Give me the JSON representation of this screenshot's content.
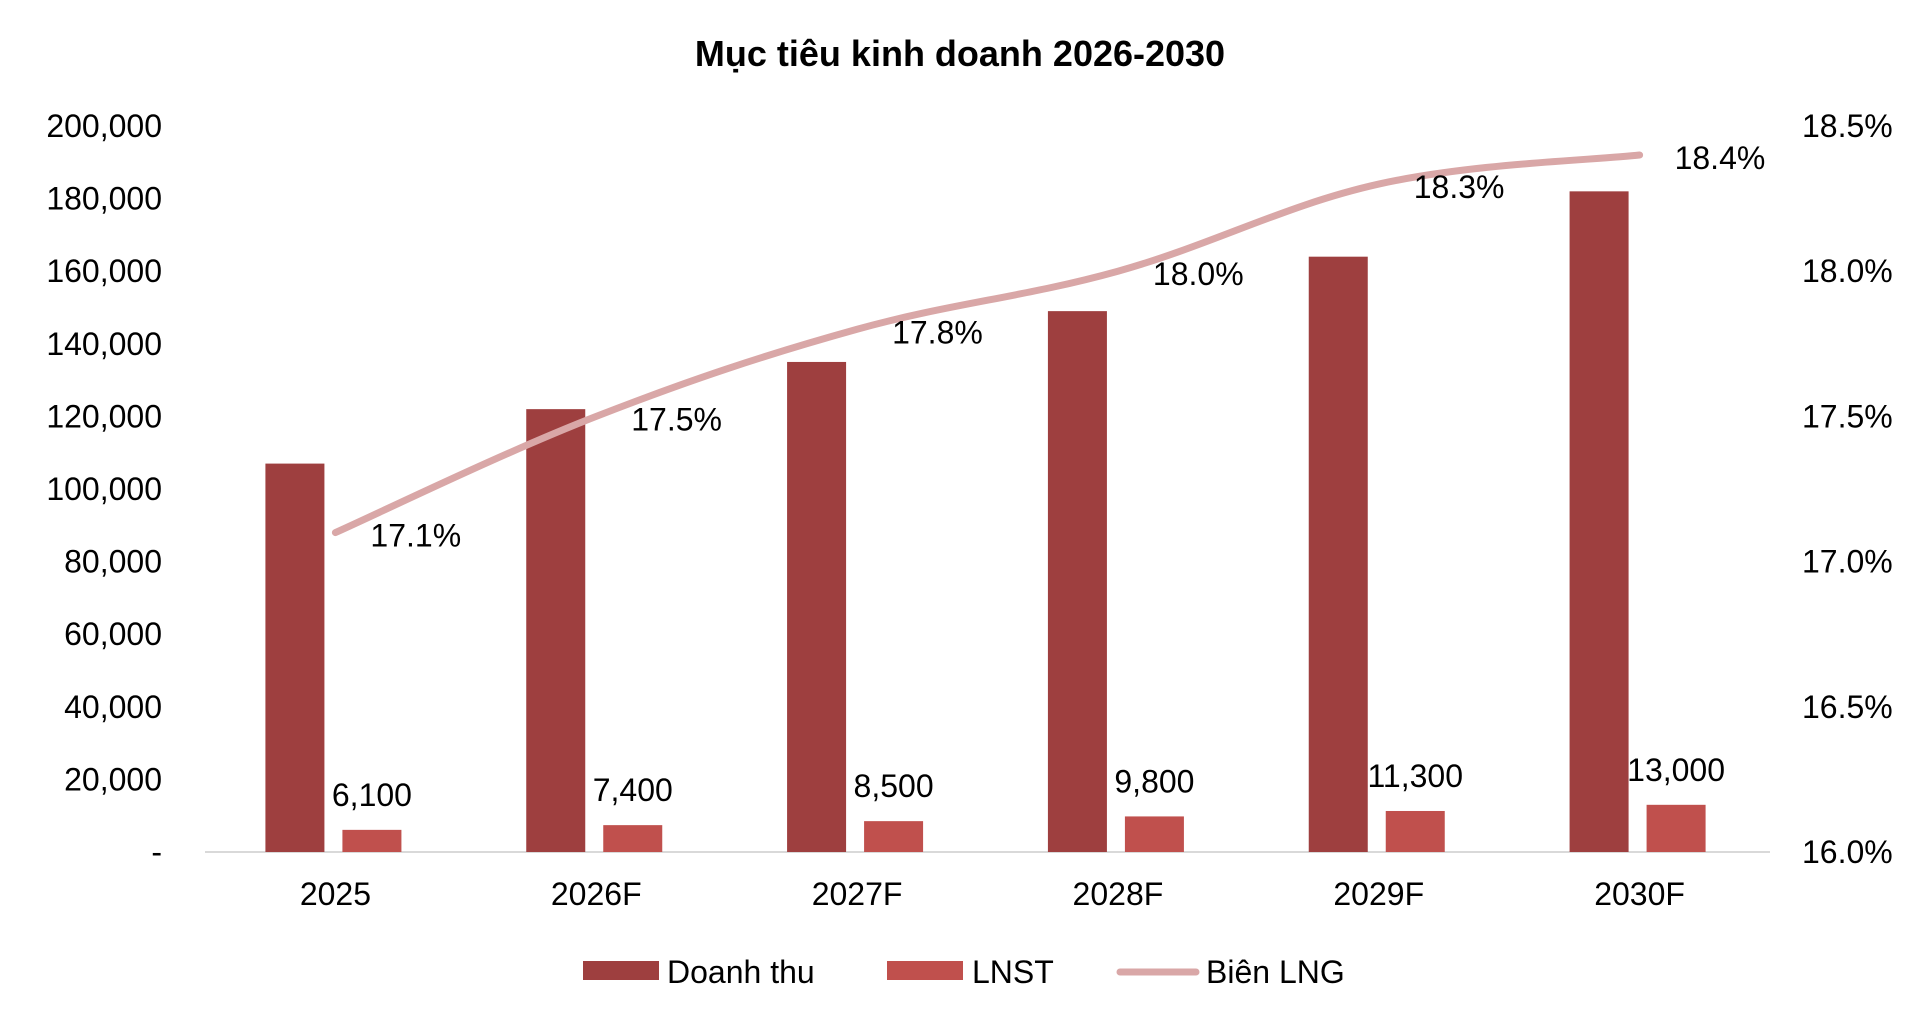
{
  "chart_data": {
    "type": "bar",
    "title": "Mục tiêu kinh doanh 2026-2030",
    "categories": [
      "2025",
      "2026F",
      "2027F",
      "2028F",
      "2029F",
      "2030F"
    ],
    "series": [
      {
        "name": "Doanh thu",
        "type": "bar",
        "axis": "left",
        "color": "#9E3F3F",
        "values": [
          107000,
          122000,
          135000,
          149000,
          164000,
          182000
        ],
        "labels_shown": false
      },
      {
        "name": "LNST",
        "type": "bar",
        "axis": "left",
        "color": "#C0504D",
        "values": [
          6100,
          7400,
          8500,
          9800,
          11300,
          13000
        ],
        "data_labels": [
          "6,100",
          "7,400",
          "8,500",
          "9,800",
          "11,300",
          "13,000"
        ]
      },
      {
        "name": "Biên LNG",
        "type": "line",
        "axis": "right",
        "color": "#D9A7A7",
        "values": [
          17.1,
          17.5,
          17.8,
          18.0,
          18.3,
          18.4
        ],
        "data_labels": [
          "17.1%",
          "17.5%",
          "17.8%",
          "18.0%",
          "18.3%",
          "18.4%"
        ]
      }
    ],
    "y_left": {
      "min": 0,
      "max": 200000,
      "ticks": [
        "-",
        "20,000",
        "40,000",
        "60,000",
        "80,000",
        "100,000",
        "120,000",
        "140,000",
        "160,000",
        "180,000",
        "200,000"
      ]
    },
    "y_right": {
      "min": 16.0,
      "max": 18.5,
      "ticks": [
        "16.0%",
        "16.5%",
        "17.0%",
        "17.5%",
        "18.0%",
        "18.5%"
      ]
    },
    "legend": {
      "position": "bottom",
      "items": [
        "Doanh thu",
        "LNST",
        "Biên LNG"
      ]
    },
    "grid": false
  }
}
